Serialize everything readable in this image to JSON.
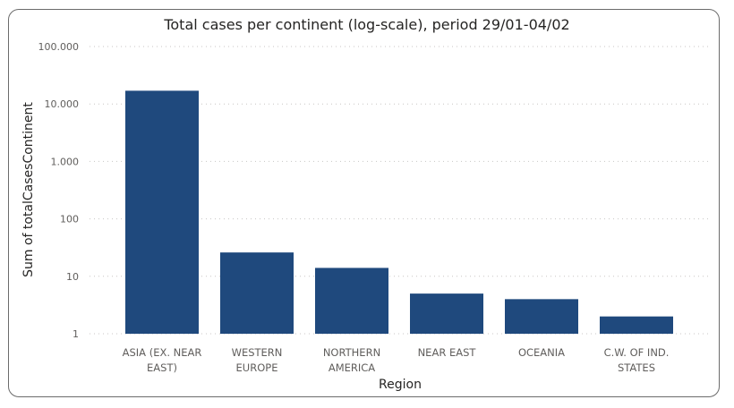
{
  "chart_data": {
    "type": "bar",
    "title": "Total cases per continent (log-scale), period 29/01-04/02",
    "xlabel": "Region",
    "ylabel": "Sum of totalCasesContinent",
    "y_scale": "log",
    "ylim": [
      1,
      100000
    ],
    "y_ticks": [
      1,
      10,
      100,
      1000,
      10000,
      100000
    ],
    "y_tick_labels": [
      "1",
      "10",
      "100",
      "1.000",
      "10.000",
      "100.000"
    ],
    "grid": true,
    "categories": [
      "ASIA (EX. NEAR EAST)",
      "WESTERN EUROPE",
      "NORTHERN AMERICA",
      "NEAR EAST",
      "OCEANIA",
      "C.W. OF IND. STATES"
    ],
    "category_label_lines": [
      [
        "ASIA (EX. NEAR",
        "EAST)"
      ],
      [
        "WESTERN",
        "EUROPE"
      ],
      [
        "NORTHERN",
        "AMERICA"
      ],
      [
        "NEAR EAST"
      ],
      [
        "OCEANIA"
      ],
      [
        "C.W. OF IND.",
        "STATES"
      ]
    ],
    "values": [
      17000,
      26,
      14,
      5,
      4,
      2
    ],
    "bar_color": "#1f497d"
  }
}
